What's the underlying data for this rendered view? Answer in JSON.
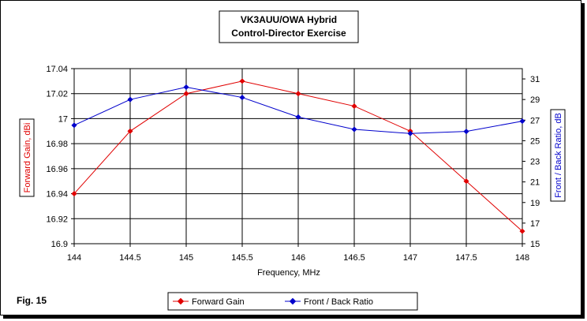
{
  "chart_data": {
    "type": "line",
    "title": [
      "VK3AUU/OWA Hybrid",
      "Control-Director Exercise"
    ],
    "xlabel": "Frequency, MHz",
    "ylabel_left": "Forward Gain, dBi",
    "ylabel_right": "Front / Back Ratio, dB",
    "figure_label": "Fig. 15",
    "x": [
      144,
      144.5,
      145,
      145.5,
      146,
      146.5,
      147,
      147.5,
      148
    ],
    "x_tick_labels": [
      "144",
      "144.5",
      "145",
      "145.5",
      "146",
      "146.5",
      "147",
      "147.5",
      "148"
    ],
    "xlim": [
      144,
      148
    ],
    "ylim_left": [
      16.9,
      17.04
    ],
    "ylim_right": [
      15,
      32
    ],
    "y_left_ticks": [
      16.9,
      16.92,
      16.94,
      16.96,
      16.98,
      17.0,
      17.02,
      17.04
    ],
    "y_left_tick_labels": [
      "16.9",
      "16.92",
      "16.94",
      "16.96",
      "16.98",
      "17",
      "17.02",
      "17.04"
    ],
    "y_right_ticks": [
      15,
      17,
      19,
      21,
      23,
      25,
      27,
      29,
      31
    ],
    "y_right_tick_labels": [
      "15",
      "17",
      "19",
      "21",
      "23",
      "25",
      "27",
      "29",
      "31"
    ],
    "grid": true,
    "legend_position": "bottom",
    "series": [
      {
        "name": "Forward Gain",
        "axis": "left",
        "color": "#e00000",
        "values": [
          16.94,
          16.99,
          17.02,
          17.03,
          17.02,
          17.01,
          16.99,
          16.95,
          16.91
        ]
      },
      {
        "name": "Front / Back Ratio",
        "axis": "right",
        "color": "#0000cc",
        "values": [
          26.5,
          29.0,
          30.2,
          29.2,
          27.3,
          26.1,
          25.7,
          25.9,
          26.9
        ]
      }
    ]
  }
}
